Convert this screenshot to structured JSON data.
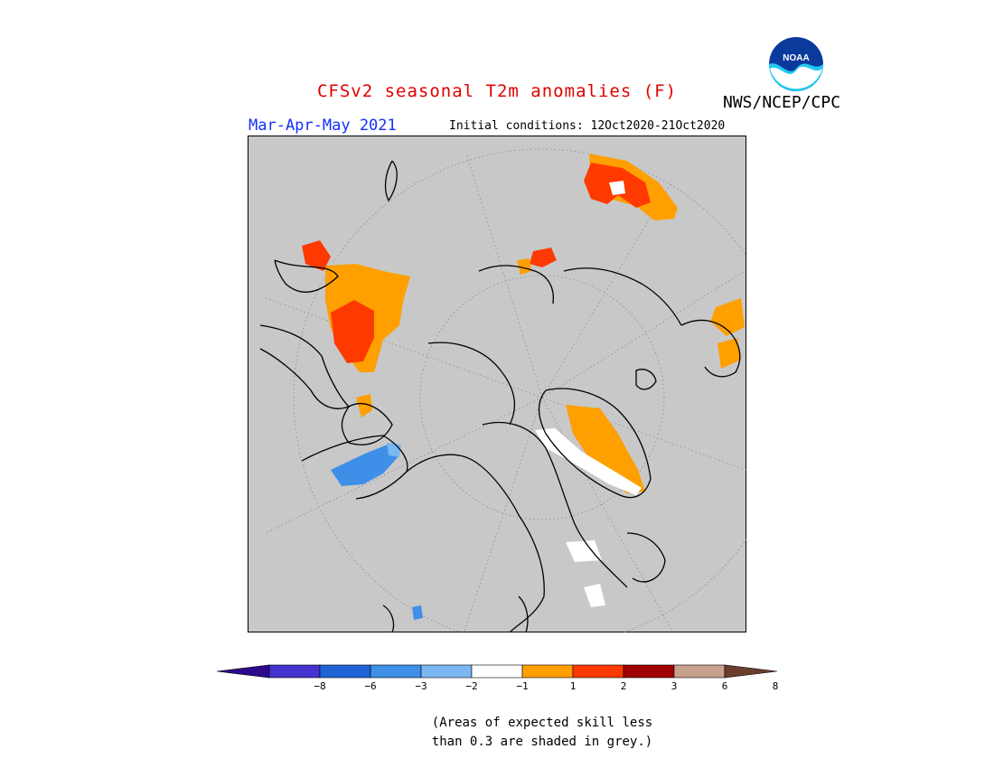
{
  "header": {
    "title": "CFSv2 seasonal T2m anomalies (F)",
    "season": "Mar-Apr-May 2021",
    "initial_conditions": "Initial conditions: 12Oct2020-21Oct2020",
    "agency": "NWS/NCEP/CPC",
    "logo_text": "NOAA"
  },
  "legend": {
    "tick_labels": [
      "-8",
      "-6",
      "-3",
      "-2",
      "-1",
      "1",
      "2",
      "3",
      "6",
      "8"
    ],
    "colors": [
      "#2d0a8c",
      "#4433cc",
      "#1e63d6",
      "#3d8fe8",
      "#7ab6f0",
      "#ffffff",
      "#ff9f00",
      "#ff3a00",
      "#a00000",
      "#c8a08e",
      "#6b3e2e"
    ]
  },
  "map": {
    "projection": "north-polar-stereographic",
    "background_color": "#c8c8c8",
    "coastline_color": "#000000"
  },
  "footnote": {
    "line1": "(Areas of expected skill less",
    "line2": "than 0.3 are shaded in grey.)"
  }
}
